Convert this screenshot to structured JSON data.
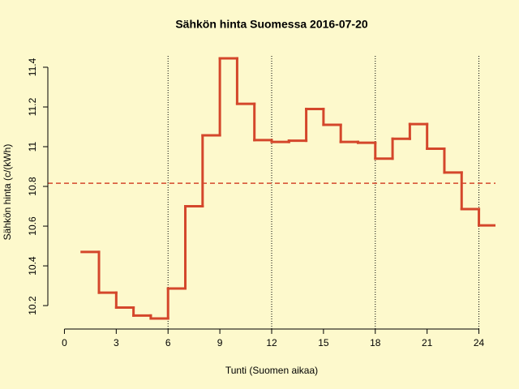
{
  "chart_data": {
    "type": "step",
    "title": "Sähkön hinta Suomessa 2016-07-20",
    "x_label": "Tunti (Suomen aikaa)",
    "y_label": "Sähkön hinta (c/(kWh)",
    "x": [
      1,
      2,
      3,
      4,
      5,
      6,
      7,
      8,
      9,
      10,
      11,
      12,
      13,
      14,
      15,
      16,
      17,
      18,
      19,
      20,
      21,
      22,
      23,
      24
    ],
    "values": [
      10.47,
      10.265,
      10.19,
      10.15,
      10.135,
      10.286,
      10.7,
      11.057,
      11.445,
      11.216,
      11.033,
      11.024,
      11.03,
      11.19,
      11.11,
      11.024,
      11.02,
      10.94,
      11.04,
      11.114,
      10.99,
      10.87,
      10.686,
      10.604
    ],
    "color": "#d4472b",
    "mean_line": 10.816,
    "vlines": [
      6,
      12,
      18,
      24
    ],
    "xlim": [
      -0.96,
      24.96
    ],
    "ylim": [
      10.082,
      11.457
    ],
    "xticks": [
      0,
      3,
      6,
      9,
      12,
      15,
      18,
      21,
      24
    ],
    "yticks": [
      10.2,
      10.4,
      10.6,
      10.8,
      11.0,
      11.2,
      11.4
    ]
  }
}
